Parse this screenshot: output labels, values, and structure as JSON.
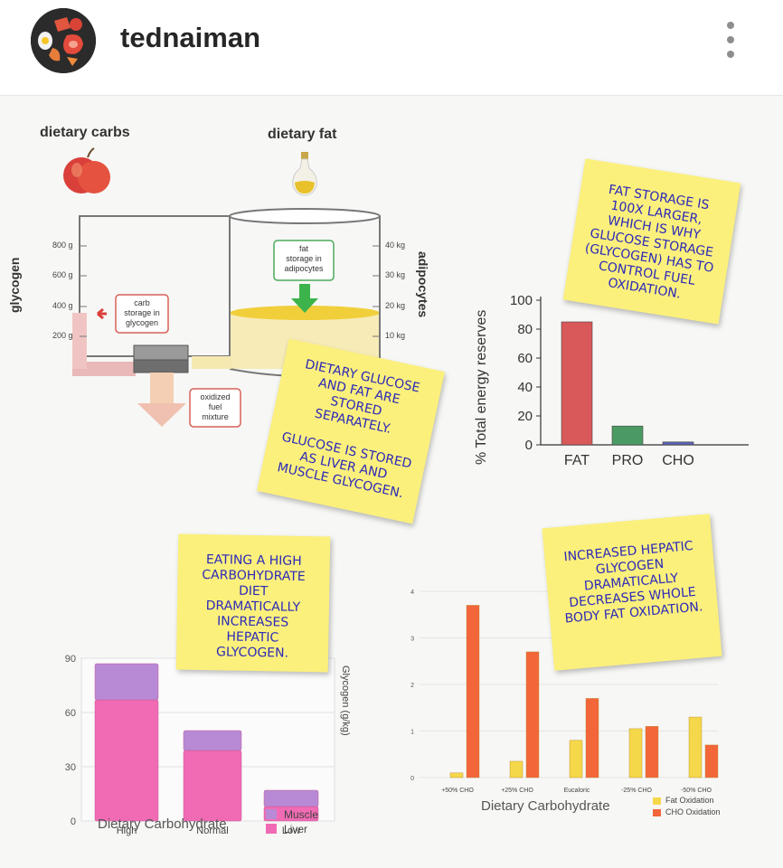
{
  "header": {
    "username": "tednaiman"
  },
  "diagram": {
    "dietary_carbs": "dietary carbs",
    "dietary_fat": "dietary fat",
    "glycogen_axis": "glycogen",
    "adipocytes_axis": "adipocytes",
    "left_ticks": [
      "800 g",
      "600 g",
      "400 g",
      "200 g"
    ],
    "right_ticks": [
      "40 kg",
      "30 kg",
      "20 kg",
      "10 kg"
    ],
    "fat_storage_box": [
      "fat",
      "storage in",
      "adipocytes"
    ],
    "carb_storage_box": [
      "carb",
      "storage in",
      "glycogen"
    ],
    "oxidized_box": [
      "oxidized",
      "fuel",
      "mixture"
    ]
  },
  "notes": {
    "fat_storage": "FAT STORAGE IS 100X LARGER, WHICH IS WHY GLUCOSE STORAGE (GLYCOGEN) HAS TO CONTROL FUEL OXIDATION.",
    "stored_separately": "DIETARY GLUCOSE AND FAT ARE STORED SEPARATELY.",
    "glucose_stored": "GLUCOSE IS STORED AS LIVER AND MUSCLE GLYCOGEN.",
    "high_carb": "EATING A HIGH CARBOHYDRATE DIET DRAMATICALLY INCREASES HEPATIC GLYCOGEN.",
    "hepatic": "INCREASED HEPATIC GLYCOGEN DRAMATICALLY DECREASES WHOLE BODY FAT OXIDATION."
  },
  "chart_data": [
    {
      "type": "bar",
      "ylabel": "% Total energy reserves",
      "categories": [
        "FAT",
        "PRO",
        "CHO"
      ],
      "values": [
        85,
        13,
        2
      ],
      "ylim": [
        0,
        100
      ],
      "yticks": [
        "100",
        "80",
        "60",
        "40",
        "20",
        "0"
      ],
      "colors": [
        "#d9585a",
        "#4c9a63",
        "#5b62b3"
      ]
    },
    {
      "type": "bar",
      "stacked": true,
      "xlabel": "Dietary Carbohydrate",
      "ylabel": "Glycogen (g/kg)",
      "categories": [
        "High",
        "Normal",
        "Low"
      ],
      "ylim": [
        0,
        90
      ],
      "yticks": [
        "90",
        "60",
        "30",
        "0"
      ],
      "series": [
        {
          "name": "Liver",
          "values": [
            67,
            39,
            8
          ],
          "color": "#f06bb4"
        },
        {
          "name": "Muscle",
          "values": [
            20,
            11,
            9
          ],
          "color": "#b88ad6"
        }
      ]
    },
    {
      "type": "bar",
      "xlabel": "Dietary Carbohydrate",
      "categories": [
        "+50% CHO",
        "+25% CHO",
        "Eucaloric",
        "-25% CHO",
        "-50% CHO"
      ],
      "ylim": [
        0,
        4
      ],
      "yticks": [
        "4",
        "3",
        "2",
        "1",
        "0"
      ],
      "series": [
        {
          "name": "Fat Oxidation",
          "values": [
            0.1,
            0.35,
            0.8,
            1.05,
            1.3
          ],
          "color": "#f5d74a"
        },
        {
          "name": "CHO Oxidation",
          "values": [
            3.7,
            2.7,
            1.7,
            1.1,
            0.7
          ],
          "color": "#f2663a"
        }
      ]
    }
  ]
}
